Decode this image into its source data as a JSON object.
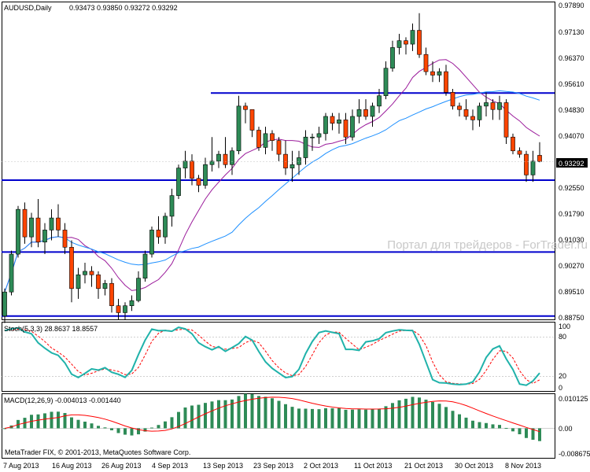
{
  "main_panel": {
    "title": "AUDUSD,Daily",
    "ohlc_readout": "0.93473 0.93850 0.93272 0.93292",
    "price_axis_labels": [
      "0.97890",
      "0.97130",
      "0.96370",
      "0.95610",
      "0.94830",
      "0.94070",
      "0.93292",
      "0.92550",
      "0.91790",
      "0.91030",
      "0.90270",
      "0.89510",
      "0.88750"
    ],
    "current_price_label": "0.93292",
    "watermark": "Портал для трейдеров - ForTrader.ru"
  },
  "stoch_panel": {
    "title": "Stoch(5,3,3) 28.8637 18.8557",
    "axis_labels": [
      "100",
      "80",
      "20",
      "0"
    ]
  },
  "macd_panel": {
    "title": "MACD(12,26,9) -0.004013 -0.001440",
    "axis_labels": [
      "0.010125",
      "0.00",
      "-0.008675"
    ],
    "copyright": "MetaTrader FIX, © 2001-2013, MetaQuotes Software Corp."
  },
  "time_axis": {
    "labels": [
      "7 Aug 2013",
      "16 Aug 2013",
      "26 Aug 2013",
      "4 Sep 2013",
      "13 Sep 2013",
      "23 Sep 2013",
      "2 Oct 2013",
      "11 Oct 2013",
      "21 Oct 2013",
      "30 Oct 2013",
      "8 Nov 2013"
    ]
  },
  "colors": {
    "bull": "#2e8b57",
    "bear": "#ff4500",
    "ma_fast": "#9b1b9b",
    "ma_slow": "#1e90ff",
    "level_line": "#0000cd",
    "stoch_main": "#20b2aa",
    "stoch_signal": "#ff0000",
    "macd_hist": "#2e8b57",
    "macd_signal": "#ff0000"
  },
  "chart_data": [
    {
      "type": "candlestick",
      "symbol": "AUDUSD",
      "timeframe": "Daily",
      "ylim": [
        0.8875,
        0.9789
      ],
      "dates": [
        "7 Aug 2013",
        "16 Aug 2013",
        "26 Aug 2013",
        "4 Sep 2013",
        "13 Sep 2013",
        "23 Sep 2013",
        "2 Oct 2013",
        "11 Oct 2013",
        "21 Oct 2013",
        "30 Oct 2013",
        "8 Nov 2013"
      ],
      "ohlc": [
        [
          0.888,
          0.896,
          0.886,
          0.895
        ],
        [
          0.895,
          0.907,
          0.894,
          0.906
        ],
        [
          0.906,
          0.92,
          0.905,
          0.919
        ],
        [
          0.919,
          0.921,
          0.909,
          0.911
        ],
        [
          0.911,
          0.918,
          0.908,
          0.9165
        ],
        [
          0.9165,
          0.922,
          0.908,
          0.9095
        ],
        [
          0.9095,
          0.915,
          0.906,
          0.913
        ],
        [
          0.913,
          0.919,
          0.91,
          0.9165
        ],
        [
          0.9165,
          0.9205,
          0.911,
          0.913
        ],
        [
          0.913,
          0.915,
          0.906,
          0.908
        ],
        [
          0.908,
          0.91,
          0.892,
          0.896
        ],
        [
          0.896,
          0.902,
          0.893,
          0.9
        ],
        [
          0.9,
          0.9035,
          0.8975,
          0.901
        ],
        [
          0.901,
          0.9025,
          0.8965,
          0.9
        ],
        [
          0.9,
          0.901,
          0.893,
          0.896
        ],
        [
          0.896,
          0.8985,
          0.894,
          0.8975
        ],
        [
          0.8975,
          0.899,
          0.889,
          0.891
        ],
        [
          0.891,
          0.893,
          0.887,
          0.889
        ],
        [
          0.889,
          0.892,
          0.887,
          0.891
        ],
        [
          0.891,
          0.894,
          0.8895,
          0.8925
        ],
        [
          0.8925,
          0.901,
          0.892,
          0.899
        ],
        [
          0.899,
          0.907,
          0.898,
          0.906
        ],
        [
          0.906,
          0.914,
          0.905,
          0.913
        ],
        [
          0.913,
          0.917,
          0.909,
          0.911
        ],
        [
          0.911,
          0.918,
          0.909,
          0.917
        ],
        [
          0.917,
          0.925,
          0.914,
          0.923
        ],
        [
          0.923,
          0.932,
          0.922,
          0.931
        ],
        [
          0.931,
          0.936,
          0.928,
          0.933
        ],
        [
          0.933,
          0.935,
          0.926,
          0.928
        ],
        [
          0.928,
          0.929,
          0.924,
          0.926
        ],
        [
          0.926,
          0.934,
          0.925,
          0.932
        ],
        [
          0.932,
          0.94,
          0.93,
          0.933
        ],
        [
          0.933,
          0.936,
          0.931,
          0.935
        ],
        [
          0.935,
          0.94,
          0.931,
          0.932
        ],
        [
          0.932,
          0.937,
          0.929,
          0.936
        ],
        [
          0.936,
          0.952,
          0.935,
          0.949
        ],
        [
          0.949,
          0.95,
          0.944,
          0.948
        ],
        [
          0.948,
          0.948,
          0.94,
          0.942
        ],
        [
          0.942,
          0.943,
          0.936,
          0.937
        ],
        [
          0.937,
          0.943,
          0.935,
          0.941
        ],
        [
          0.941,
          0.942,
          0.936,
          0.939
        ],
        [
          0.939,
          0.94,
          0.933,
          0.935
        ],
        [
          0.935,
          0.939,
          0.929,
          0.931
        ],
        [
          0.931,
          0.936,
          0.927,
          0.932
        ],
        [
          0.932,
          0.936,
          0.929,
          0.934
        ],
        [
          0.934,
          0.942,
          0.932,
          0.94
        ],
        [
          0.94,
          0.941,
          0.936,
          0.94
        ],
        [
          0.94,
          0.943,
          0.938,
          0.941
        ],
        [
          0.941,
          0.947,
          0.939,
          0.946
        ],
        [
          0.946,
          0.947,
          0.942,
          0.944
        ],
        [
          0.944,
          0.947,
          0.941,
          0.945
        ],
        [
          0.945,
          0.947,
          0.938,
          0.94
        ],
        [
          0.94,
          0.948,
          0.939,
          0.946
        ],
        [
          0.946,
          0.951,
          0.944,
          0.948
        ],
        [
          0.948,
          0.951,
          0.945,
          0.946
        ],
        [
          0.946,
          0.95,
          0.943,
          0.949
        ],
        [
          0.949,
          0.954,
          0.947,
          0.952
        ],
        [
          0.952,
          0.962,
          0.951,
          0.96
        ],
        [
          0.96,
          0.968,
          0.959,
          0.966
        ],
        [
          0.966,
          0.97,
          0.964,
          0.968
        ],
        [
          0.968,
          0.969,
          0.964,
          0.967
        ],
        [
          0.967,
          0.973,
          0.965,
          0.971
        ],
        [
          0.971,
          0.976,
          0.963,
          0.964
        ],
        [
          0.964,
          0.966,
          0.958,
          0.959
        ],
        [
          0.959,
          0.962,
          0.956,
          0.958
        ],
        [
          0.958,
          0.96,
          0.956,
          0.959
        ],
        [
          0.959,
          0.961,
          0.952,
          0.953
        ],
        [
          0.953,
          0.954,
          0.948,
          0.949
        ],
        [
          0.949,
          0.95,
          0.946,
          0.948
        ],
        [
          0.948,
          0.951,
          0.945,
          0.946
        ],
        [
          0.946,
          0.948,
          0.942,
          0.945
        ],
        [
          0.945,
          0.95,
          0.943,
          0.949
        ],
        [
          0.949,
          0.953,
          0.946,
          0.95
        ],
        [
          0.95,
          0.951,
          0.945,
          0.948
        ],
        [
          0.948,
          0.952,
          0.945,
          0.95
        ],
        [
          0.95,
          0.951,
          0.938,
          0.94
        ],
        [
          0.94,
          0.941,
          0.935,
          0.936
        ],
        [
          0.936,
          0.937,
          0.934,
          0.935
        ],
        [
          0.935,
          0.936,
          0.927,
          0.929
        ],
        [
          0.929,
          0.936,
          0.927,
          0.933
        ],
        [
          0.9347,
          0.9385,
          0.9327,
          0.9329
        ]
      ],
      "moving_averages": [
        {
          "name": "MA fast",
          "color": "#9b1b9b"
        },
        {
          "name": "MA slow",
          "color": "#1e90ff"
        }
      ],
      "horizontal_levels": [
        0.9528,
        0.9275,
        0.9066,
        0.888
      ],
      "current_price": 0.93292
    },
    {
      "type": "line",
      "indicator": "Stochastic",
      "params": "5,3,3",
      "main_value": 28.8637,
      "signal_value": 18.8557,
      "ylim": [
        0,
        100
      ],
      "levels": [
        20,
        80
      ]
    },
    {
      "type": "bar",
      "indicator": "MACD",
      "params": "12,26,9",
      "main_value": -0.004013,
      "signal_value": -0.00144,
      "ylim": [
        -0.008675,
        0.010125
      ]
    }
  ]
}
